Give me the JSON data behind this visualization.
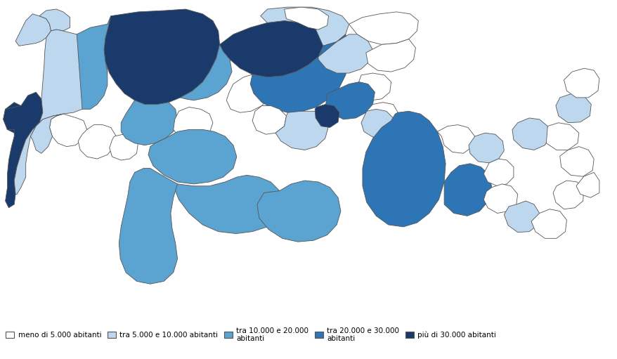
{
  "legend_labels": [
    "meno di 5.000 abitanti",
    "tra 5.000 e 10.000 abitanti",
    "tra 10.000 e 20.000\nabitanti",
    "tra 20.000 e 30.000\nabitanti",
    "più di 30.000 abitanti"
  ],
  "colors": {
    "c0": "#FFFFFF",
    "c1": "#BDD7EE",
    "c2": "#5BA3D0",
    "c3": "#2E75B6",
    "c4": "#1A3A6B"
  },
  "edge_color": "#555555",
  "edge_width": 0.6,
  "background": "#FFFFFF",
  "legend_fontsize": 7.5
}
